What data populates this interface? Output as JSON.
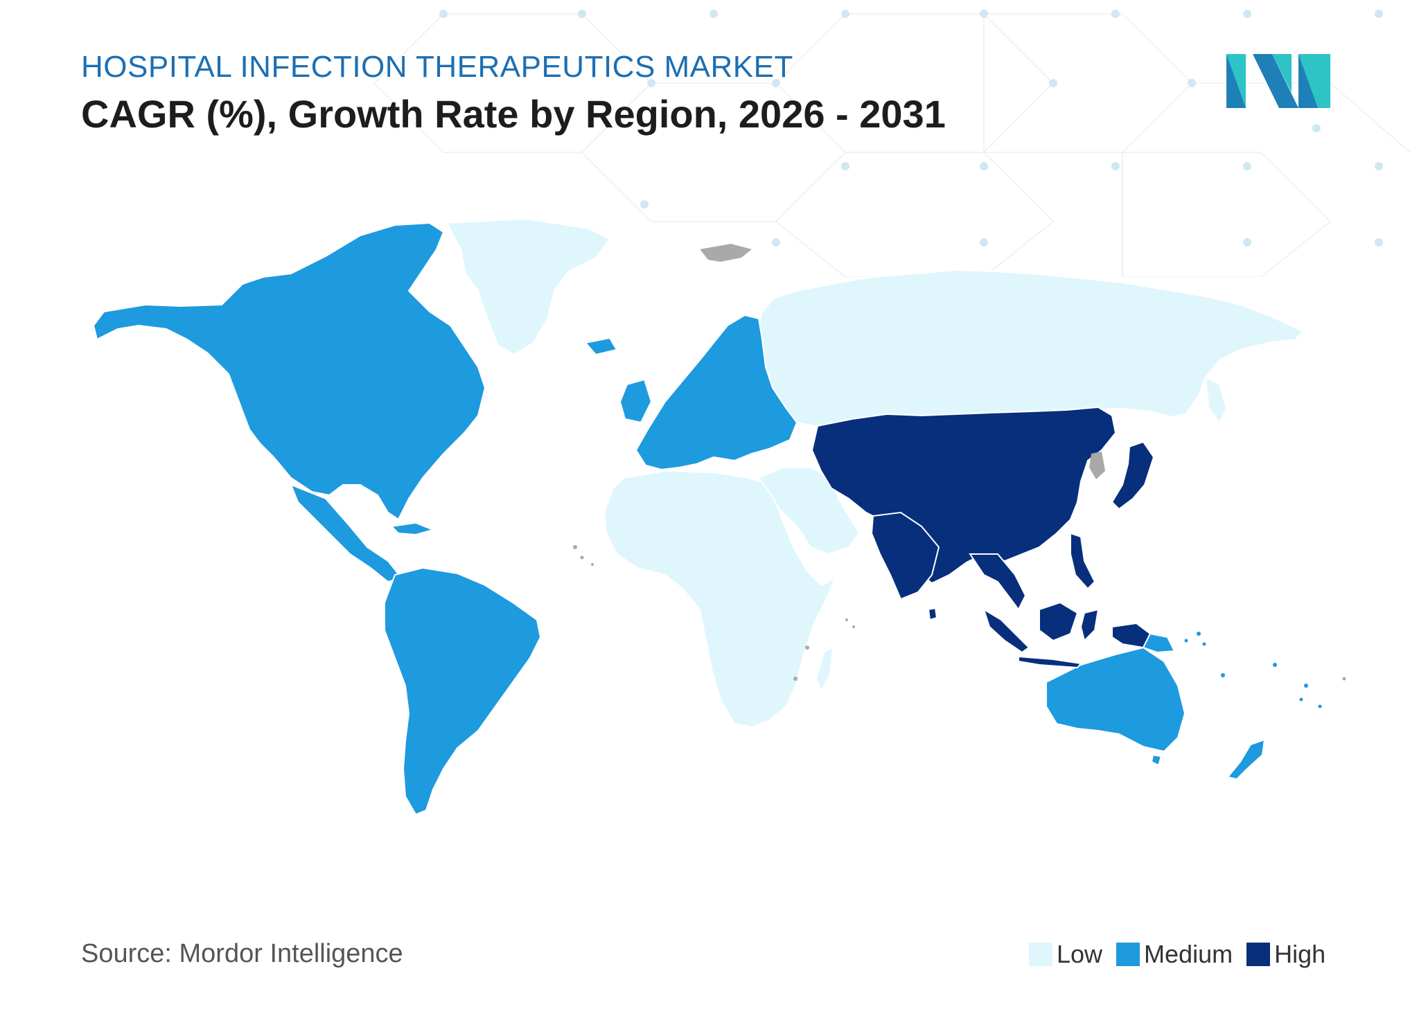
{
  "header": {
    "subtitle": "HOSPITAL INFECTION THERAPEUTICS MARKET",
    "title": "CAGR (%), Growth Rate by Region, 2026 - 2031"
  },
  "source": "Source: Mordor Intelligence",
  "legend": [
    {
      "label": "Low",
      "color": "#dff6fd"
    },
    {
      "label": "Medium",
      "color": "#1e9ade"
    },
    {
      "label": "High",
      "color": "#072f7c"
    }
  ],
  "map": {
    "regions": [
      {
        "region": "North America",
        "level": "Medium"
      },
      {
        "region": "South America",
        "level": "Medium"
      },
      {
        "region": "Europe",
        "level": "Medium"
      },
      {
        "region": "Australia & New Zealand",
        "level": "Medium"
      },
      {
        "region": "Asia-Pacific",
        "level": "High"
      },
      {
        "region": "Greenland",
        "level": "Low"
      },
      {
        "region": "Russia",
        "level": "Low"
      },
      {
        "region": "Africa",
        "level": "Low"
      },
      {
        "region": "Middle East",
        "level": "Low"
      }
    ],
    "no_data_color": "#a9a9a9"
  },
  "logo": {
    "name": "mordor-intelligence-logo",
    "colors": [
      "#1f7fb7",
      "#2ec4c6"
    ]
  }
}
